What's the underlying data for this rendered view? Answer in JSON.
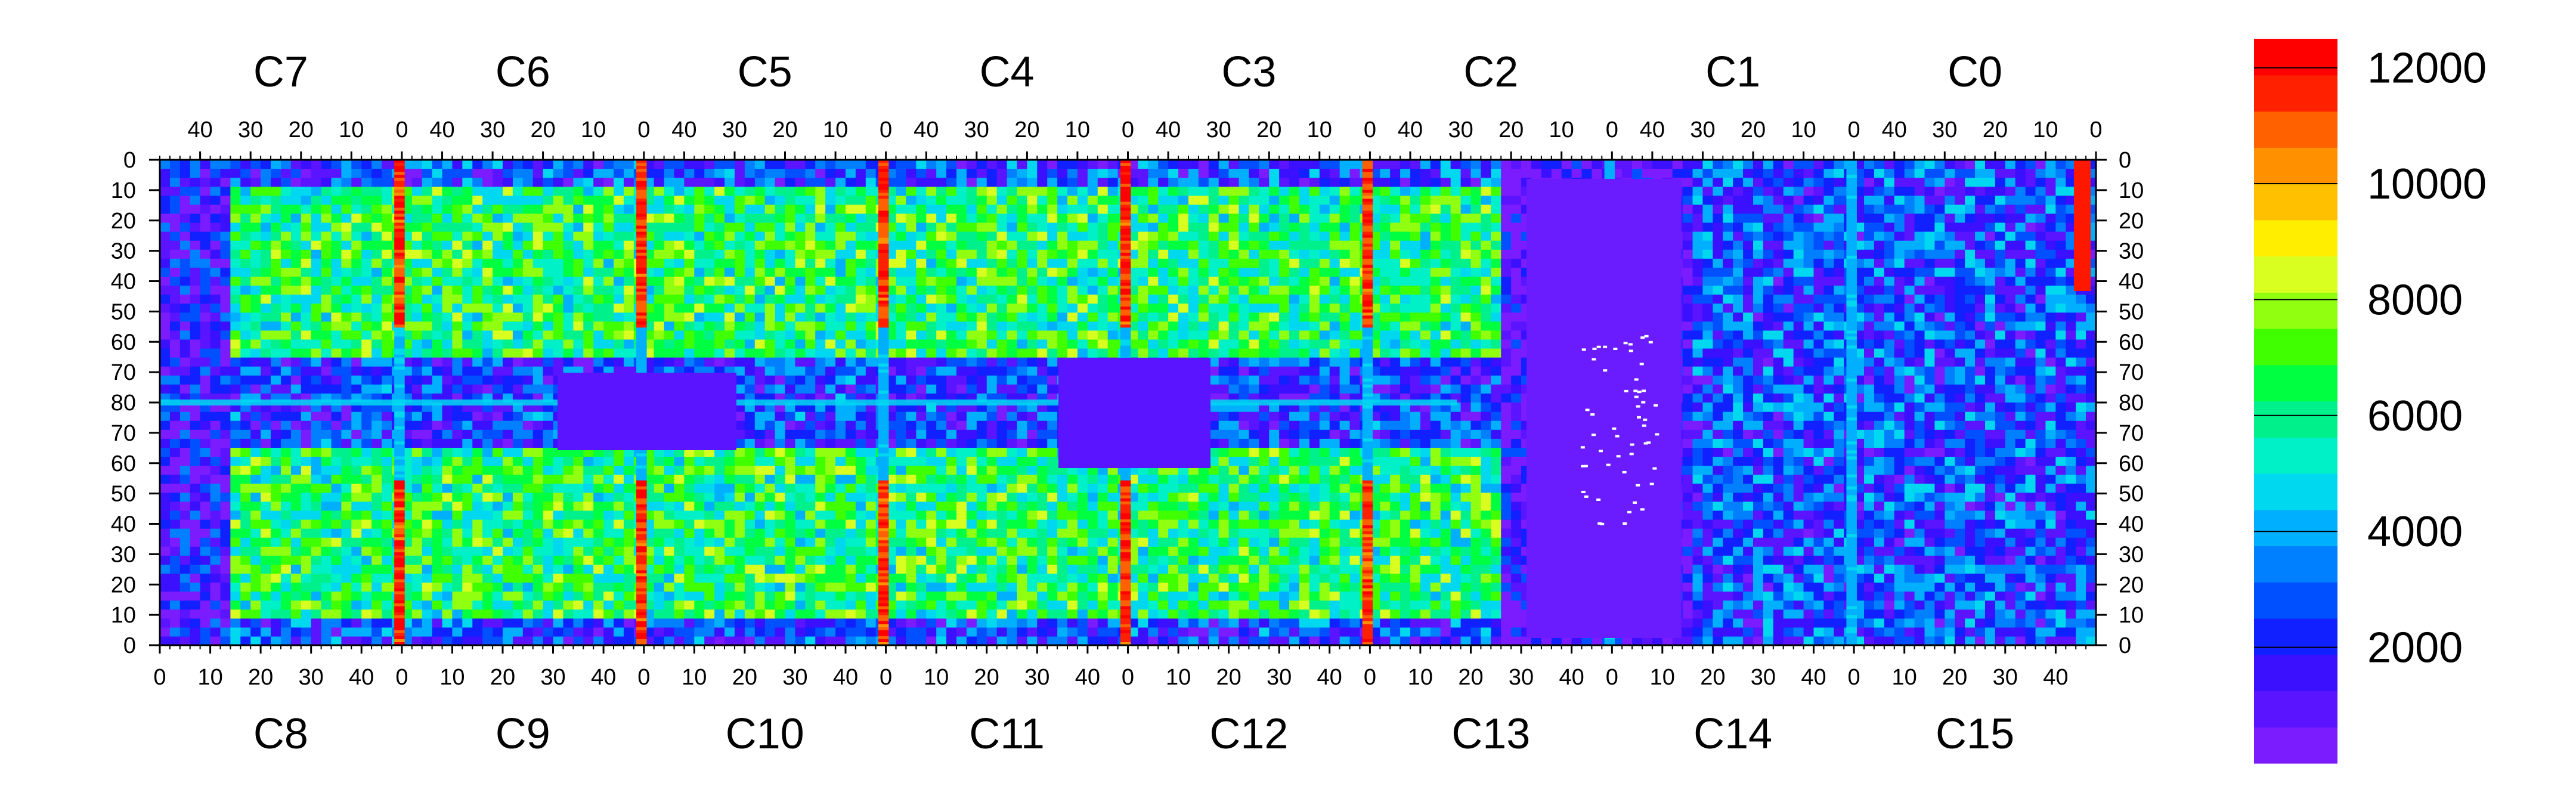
{
  "chart_data": {
    "type": "heatmap",
    "title": "",
    "xlabel": "",
    "ylabel": "",
    "colorbar": {
      "range": [
        0,
        12500
      ],
      "ticks": [
        2000,
        4000,
        6000,
        8000,
        10000,
        12000
      ],
      "tick_labels": [
        "2000",
        "4000",
        "6000",
        "8000",
        "10000",
        "12000"
      ],
      "colors": [
        "#7b1cff",
        "#5a14ff",
        "#3a10ff",
        "#1020ff",
        "#0050ff",
        "#0080ff",
        "#00b0ff",
        "#00d8f0",
        "#00f0c8",
        "#00f08c",
        "#00ff40",
        "#40ff00",
        "#90ff10",
        "#d8ff20",
        "#ffee00",
        "#ffc000",
        "#ff9000",
        "#ff6000",
        "#ff2000",
        "#ff0000"
      ]
    },
    "top_chips": {
      "labels": [
        "C7",
        "C6",
        "C5",
        "C4",
        "C3",
        "C2",
        "C1",
        "C0"
      ],
      "tick_labels": [
        "40",
        "30",
        "20",
        "10",
        "0"
      ]
    },
    "bottom_chips": {
      "labels": [
        "C8",
        "C9",
        "C10",
        "C11",
        "C12",
        "C13",
        "C14",
        "C15"
      ],
      "tick_labels": [
        "0",
        "10",
        "20",
        "30",
        "40"
      ]
    },
    "y_ticks": {
      "values": [
        0,
        10,
        20,
        30,
        40,
        50,
        60,
        70,
        80,
        70,
        60,
        50,
        40,
        30,
        20,
        10,
        0
      ],
      "labels": [
        "0",
        "10",
        "20",
        "30",
        "40",
        "50",
        "60",
        "70",
        "80",
        "70",
        "60",
        "50",
        "40",
        "30",
        "20",
        "10",
        "0"
      ]
    },
    "grid": false,
    "colorbar_position": "right"
  }
}
